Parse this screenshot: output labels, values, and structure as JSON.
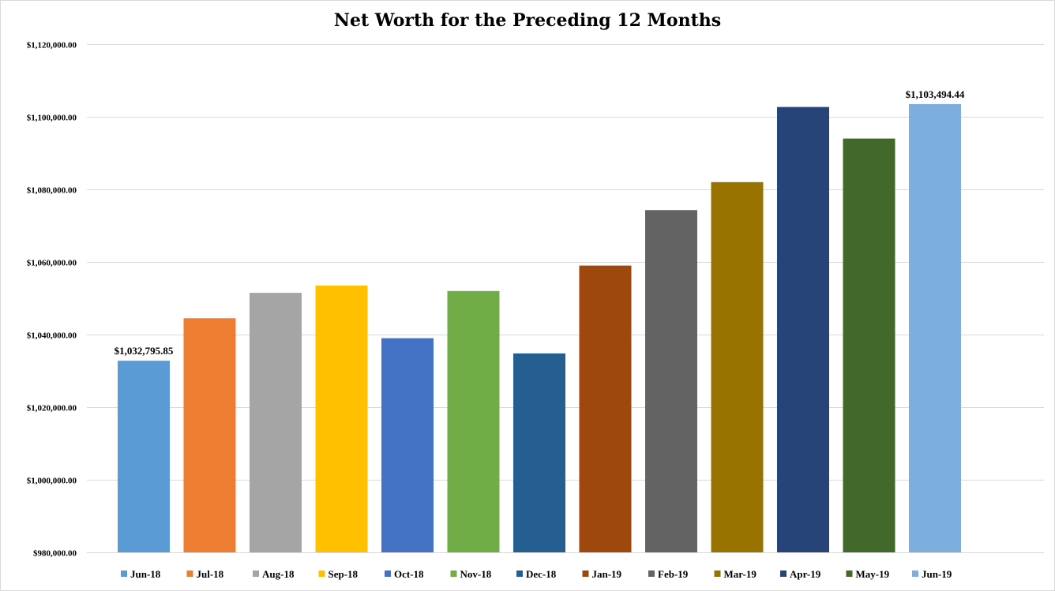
{
  "chart_data": {
    "type": "bar",
    "title": "Net Worth for the Preceding 12 Months",
    "categories": [
      "Jun-18",
      "Jul-18",
      "Aug-18",
      "Sep-18",
      "Oct-18",
      "Nov-18",
      "Dec-18",
      "Jan-19",
      "Feb-19",
      "Mar-19",
      "Apr-19",
      "May-19",
      "Jun-19"
    ],
    "values": [
      1032795.85,
      1044500,
      1051500,
      1053500,
      1039000,
      1052000,
      1034800,
      1059000,
      1074300,
      1082000,
      1102700,
      1094000,
      1103494.44
    ],
    "colors": [
      "#5b9bd5",
      "#ed7d31",
      "#a5a5a5",
      "#ffc000",
      "#4472c4",
      "#70ad47",
      "#255e91",
      "#9e480e",
      "#636363",
      "#997300",
      "#264478",
      "#43682b",
      "#7cafdd"
    ],
    "data_labels": [
      {
        "index": 0,
        "text": "$1,032,795.85"
      },
      {
        "index": 12,
        "text": "$1,103,494.44"
      }
    ],
    "ylim": [
      980000,
      1120000
    ],
    "yticks": [
      980000,
      1000000,
      1020000,
      1040000,
      1060000,
      1080000,
      1100000,
      1120000
    ],
    "ytick_labels": [
      "$980,000.00",
      "$1,000,000.00",
      "$1,020,000.00",
      "$1,040,000.00",
      "$1,060,000.00",
      "$1,080,000.00",
      "$1,100,000.00",
      "$1,120,000.00"
    ],
    "xlabel": "",
    "ylabel": "",
    "grid": true,
    "legend": "bottom"
  }
}
